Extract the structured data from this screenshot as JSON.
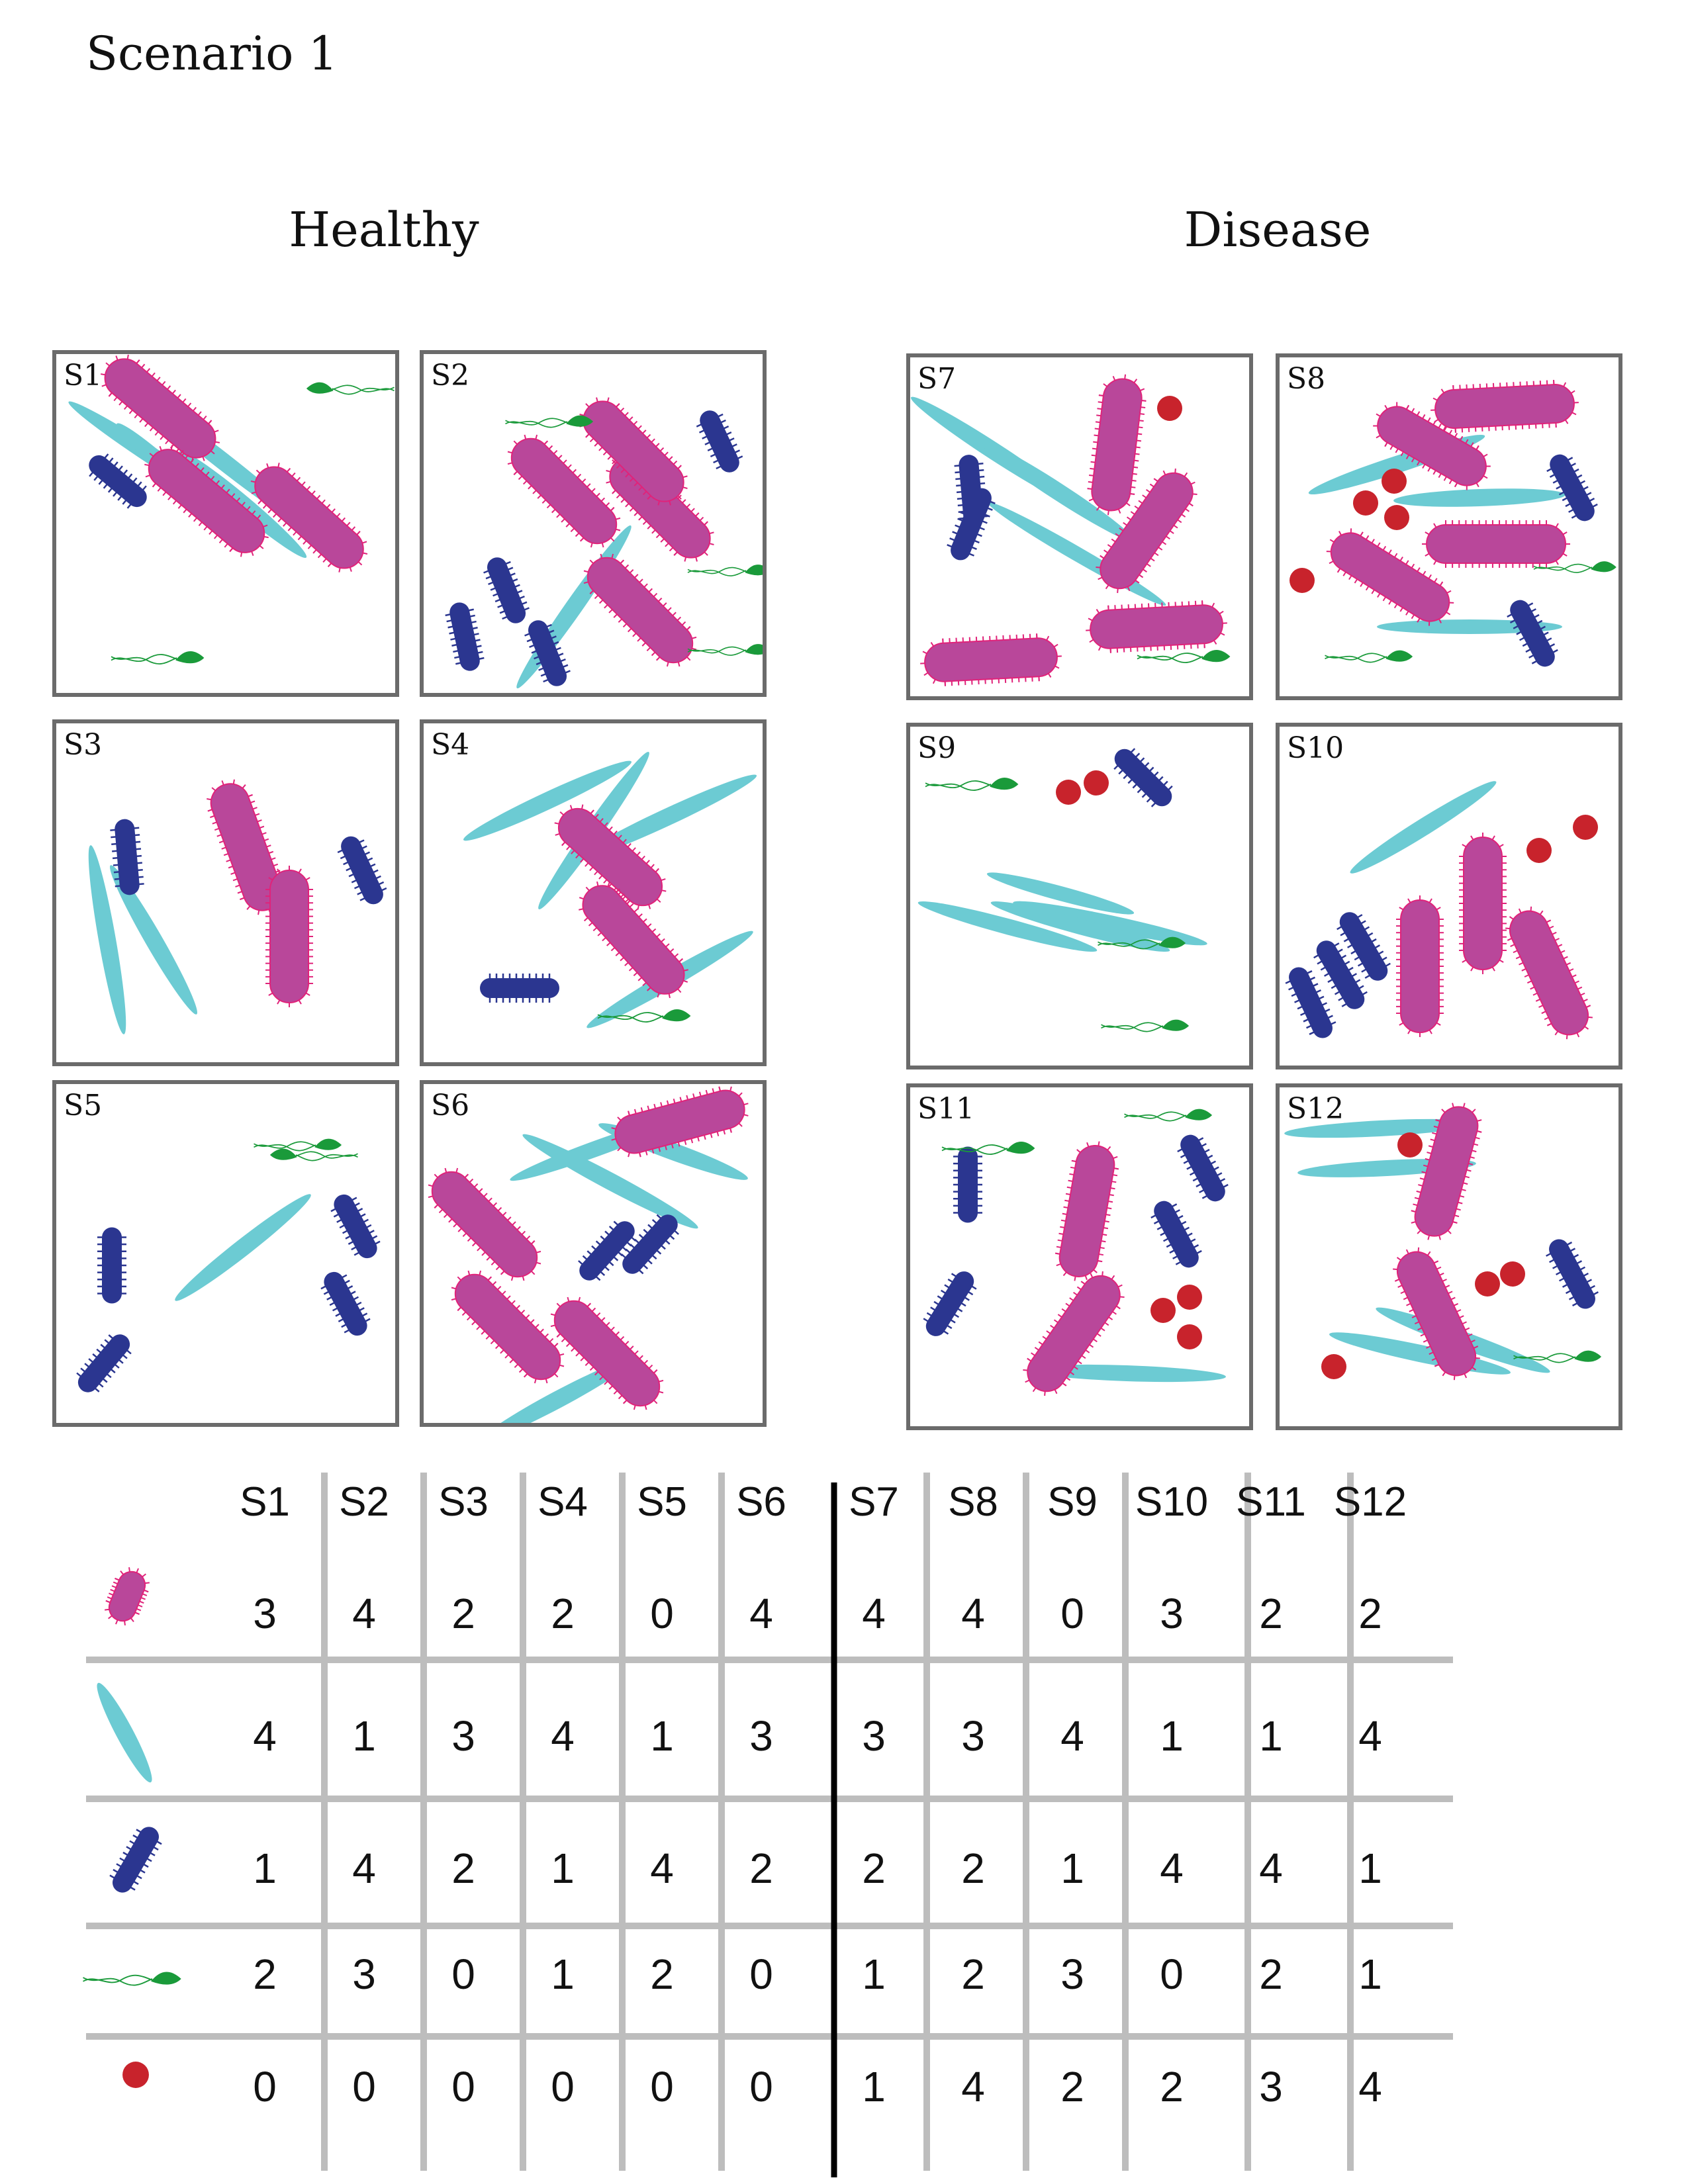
{
  "title": "Scenario 1",
  "groups": {
    "healthy": "Healthy",
    "disease": "Disease"
  },
  "colors": {
    "rod_magenta": "#b9479a",
    "rod_magenta_fringe": "#e0237a",
    "filament_cyan": "#6ccbd3",
    "rod_blue": "#2b3690",
    "flagellate_green": "#1a9a3a",
    "coccus_red": "#c8232c",
    "grid_gray": "#bdbdbd",
    "divider_black": "#000000",
    "panel_border": "#6b6b6b"
  },
  "microbe_types": [
    {
      "key": "rod_magenta",
      "icon": "magenta-rod-icon"
    },
    {
      "key": "filament_cyan",
      "icon": "cyan-filament-icon"
    },
    {
      "key": "rod_blue",
      "icon": "blue-rod-icon"
    },
    {
      "key": "flagellate_green",
      "icon": "green-flagellate-icon"
    },
    {
      "key": "coccus_red",
      "icon": "red-coccus-icon"
    }
  ],
  "samples": [
    {
      "label": "S1",
      "group": "healthy",
      "counts": [
        3,
        4,
        1,
        2,
        0
      ]
    },
    {
      "label": "S2",
      "group": "healthy",
      "counts": [
        4,
        1,
        4,
        3,
        0
      ]
    },
    {
      "label": "S3",
      "group": "healthy",
      "counts": [
        2,
        3,
        2,
        0,
        0
      ]
    },
    {
      "label": "S4",
      "group": "healthy",
      "counts": [
        2,
        4,
        1,
        1,
        0
      ]
    },
    {
      "label": "S5",
      "group": "healthy",
      "counts": [
        0,
        1,
        4,
        2,
        0
      ]
    },
    {
      "label": "S6",
      "group": "healthy",
      "counts": [
        4,
        3,
        2,
        0,
        0
      ]
    },
    {
      "label": "S7",
      "group": "disease",
      "counts": [
        4,
        3,
        2,
        1,
        1
      ]
    },
    {
      "label": "S8",
      "group": "disease",
      "counts": [
        4,
        3,
        2,
        2,
        4
      ]
    },
    {
      "label": "S9",
      "group": "disease",
      "counts": [
        0,
        4,
        1,
        3,
        2
      ]
    },
    {
      "label": "S10",
      "group": "disease",
      "counts": [
        3,
        1,
        4,
        0,
        2
      ]
    },
    {
      "label": "S11",
      "group": "disease",
      "counts": [
        2,
        1,
        4,
        2,
        3
      ]
    },
    {
      "label": "S12",
      "group": "disease",
      "counts": [
        2,
        4,
        1,
        1,
        4
      ]
    }
  ]
}
